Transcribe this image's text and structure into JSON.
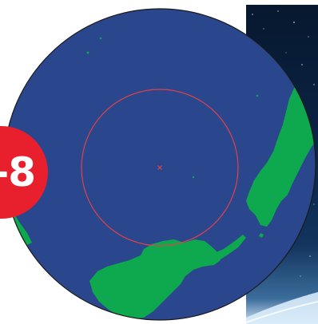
{
  "badge": {
    "text": "-8"
  },
  "colors": {
    "ocean": "#2a468c",
    "land": "#0ea84f",
    "marker": "#e0424a",
    "badge": "#e8202d",
    "globe_outline": "#1a1a1a"
  },
  "map": {
    "projection": "orthographic",
    "feature": "point-nemo-oceanic-pole-of-inaccessibility",
    "marker_icon": "cross-marker-icon",
    "ring": "distance-circle"
  }
}
